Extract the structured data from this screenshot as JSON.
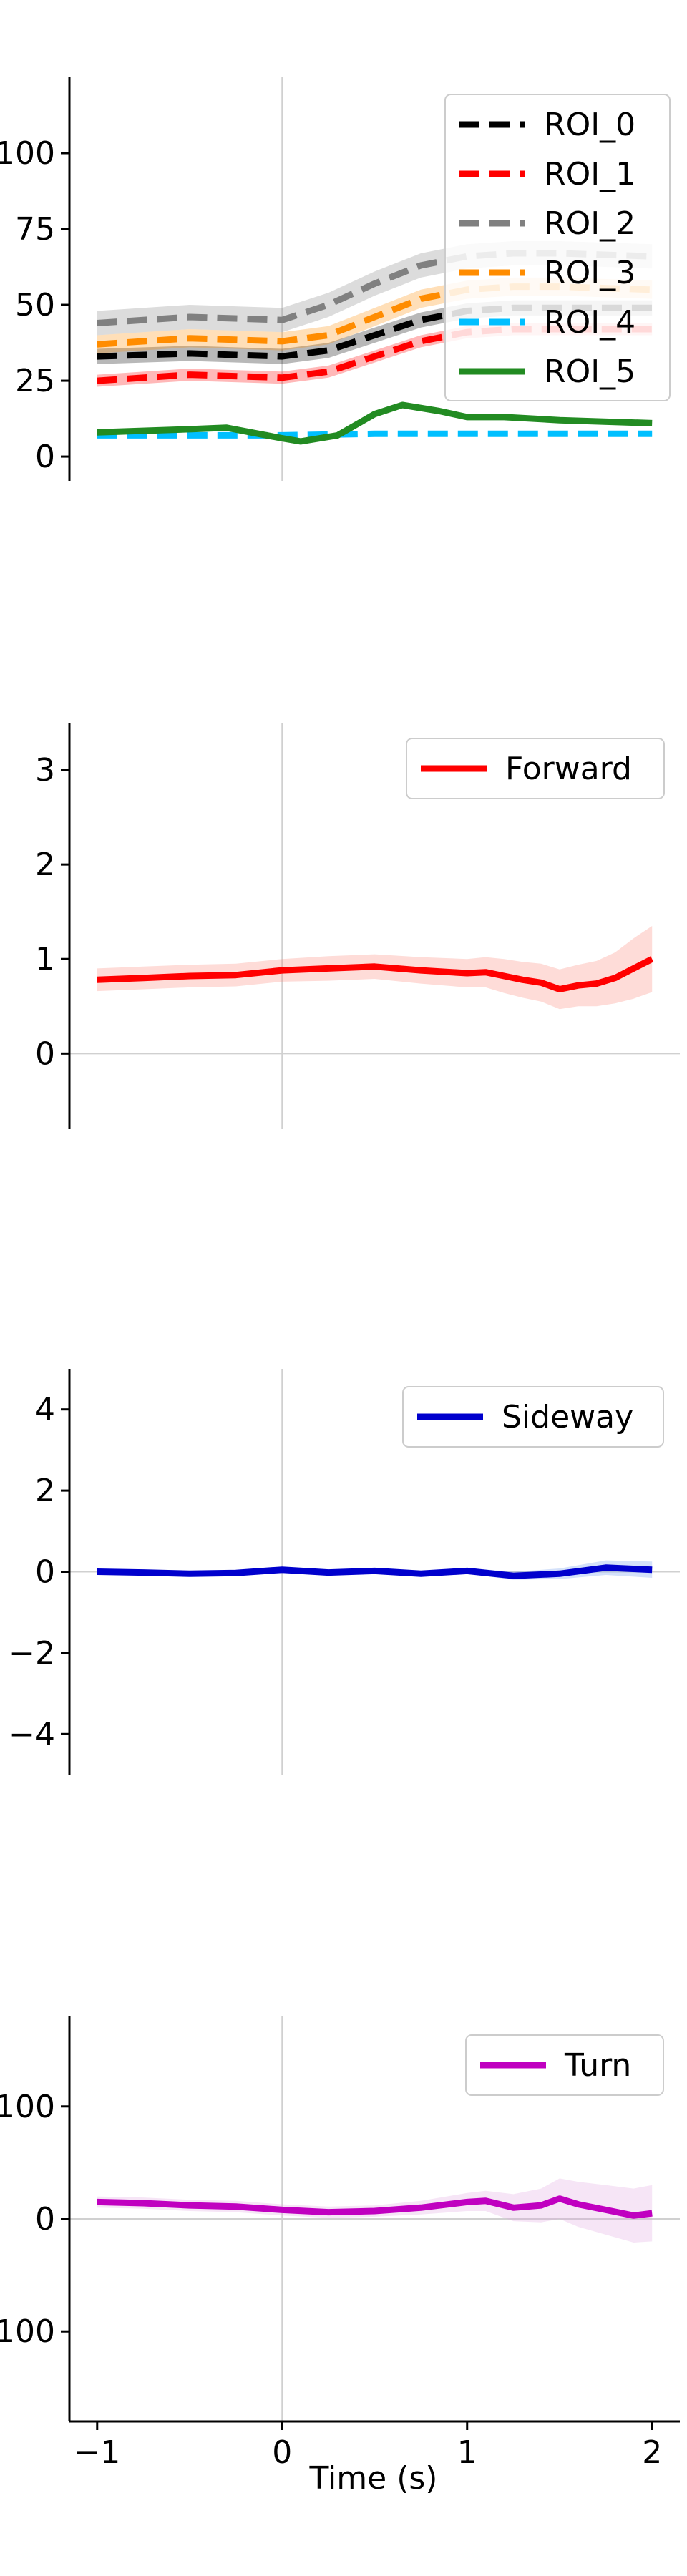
{
  "chart_data": [
    {
      "type": "line",
      "title": "",
      "xlabel": "",
      "ylabel": "",
      "xlim": [
        -1.15,
        2.15
      ],
      "ylim": [
        -8,
        125
      ],
      "yticks": [
        0,
        25,
        50,
        75,
        100
      ],
      "ytick_labels": [
        "0",
        "25",
        "50",
        "75",
        "100"
      ],
      "grid": false,
      "reference_lines": {
        "x": 0,
        "y": null
      },
      "legend": {
        "placement": "top-right"
      },
      "series": [
        {
          "name": "ROI_0",
          "color": "#000000",
          "dash": "dashed",
          "band": 2.5,
          "x": [
            -1,
            -0.5,
            0,
            0.25,
            0.5,
            0.75,
            1,
            1.25,
            1.5,
            2
          ],
          "y": [
            33,
            34,
            33,
            35,
            40,
            45,
            48,
            49,
            49,
            49
          ]
        },
        {
          "name": "ROI_1",
          "color": "#ff0000",
          "dash": "dashed",
          "band": 2,
          "x": [
            -1,
            -0.5,
            0,
            0.25,
            0.5,
            0.75,
            1,
            1.25,
            1.5,
            2
          ],
          "y": [
            25,
            27,
            26,
            28,
            33,
            38,
            41,
            42,
            42,
            42
          ]
        },
        {
          "name": "ROI_2",
          "color": "#808080",
          "dash": "dashed",
          "band": 4,
          "x": [
            -1,
            -0.5,
            0,
            0.25,
            0.5,
            0.75,
            1,
            1.25,
            1.5,
            2
          ],
          "y": [
            44,
            46,
            45,
            50,
            57,
            63,
            66,
            67,
            67,
            66
          ]
        },
        {
          "name": "ROI_3",
          "color": "#ff8c00",
          "dash": "dashed",
          "band": 3,
          "x": [
            -1,
            -0.5,
            0,
            0.25,
            0.5,
            0.75,
            1,
            1.25,
            1.5,
            2
          ],
          "y": [
            37,
            39,
            38,
            40,
            46,
            52,
            55,
            56,
            56,
            55
          ]
        },
        {
          "name": "ROI_4",
          "color": "#00bfff",
          "dash": "dashed",
          "band": 0,
          "x": [
            -1,
            -0.5,
            0,
            0.5,
            1,
            1.5,
            2
          ],
          "y": [
            7,
            7,
            7,
            7.5,
            7.5,
            7.5,
            7.5
          ]
        },
        {
          "name": "ROI_5",
          "color": "#228b22",
          "dash": "solid",
          "band": 0,
          "x": [
            -1,
            -0.5,
            -0.3,
            0,
            0.1,
            0.3,
            0.5,
            0.65,
            0.85,
            1,
            1.2,
            1.5,
            2
          ],
          "y": [
            8,
            9,
            9.5,
            6,
            5,
            7,
            14,
            17,
            15,
            13,
            13,
            12,
            11
          ]
        }
      ]
    },
    {
      "type": "line",
      "title": "",
      "xlabel": "",
      "ylabel": "",
      "xlim": [
        -1.15,
        2.15
      ],
      "ylim": [
        -0.8,
        3.5
      ],
      "yticks": [
        0,
        1,
        2,
        3
      ],
      "ytick_labels": [
        "0",
        "1",
        "2",
        "3"
      ],
      "grid": false,
      "reference_lines": {
        "x": 0,
        "y": 0
      },
      "legend": {
        "placement": "top-right"
      },
      "series": [
        {
          "name": "Forward",
          "color": "#ff0000",
          "dash": "solid",
          "band_color": "#fa8072",
          "x": [
            -1,
            -0.75,
            -0.5,
            -0.25,
            0,
            0.25,
            0.5,
            0.75,
            1,
            1.1,
            1.2,
            1.3,
            1.4,
            1.5,
            1.6,
            1.7,
            1.8,
            1.9,
            2
          ],
          "y": [
            0.78,
            0.8,
            0.82,
            0.83,
            0.88,
            0.9,
            0.92,
            0.88,
            0.85,
            0.86,
            0.82,
            0.78,
            0.75,
            0.68,
            0.72,
            0.74,
            0.8,
            0.9,
            1.0
          ],
          "band": [
            0.12,
            0.12,
            0.12,
            0.12,
            0.12,
            0.13,
            0.13,
            0.14,
            0.15,
            0.16,
            0.18,
            0.19,
            0.2,
            0.21,
            0.22,
            0.24,
            0.27,
            0.32,
            0.35
          ]
        }
      ]
    },
    {
      "type": "line",
      "title": "",
      "xlabel": "",
      "ylabel": "",
      "xlim": [
        -1.15,
        2.15
      ],
      "ylim": [
        -5,
        5
      ],
      "yticks": [
        -4,
        -2,
        0,
        2,
        4
      ],
      "ytick_labels": [
        "−4",
        "−2",
        "0",
        "2",
        "4"
      ],
      "grid": false,
      "reference_lines": {
        "x": 0,
        "y": 0
      },
      "legend": {
        "placement": "top-right"
      },
      "series": [
        {
          "name": "Sideway",
          "color": "#0000cd",
          "dash": "solid",
          "band_color": "#6495ed",
          "x": [
            -1,
            -0.75,
            -0.5,
            -0.25,
            0,
            0.25,
            0.5,
            0.75,
            1,
            1.25,
            1.5,
            1.75,
            2
          ],
          "y": [
            0,
            -0.02,
            -0.05,
            -0.03,
            0.05,
            -0.02,
            0.02,
            -0.05,
            0.02,
            -0.1,
            -0.05,
            0.1,
            0.05
          ],
          "band": [
            0.05,
            0.05,
            0.05,
            0.05,
            0.05,
            0.05,
            0.06,
            0.06,
            0.07,
            0.1,
            0.13,
            0.18,
            0.2
          ]
        }
      ]
    },
    {
      "type": "line",
      "title": "",
      "xlabel": "Time (s)",
      "ylabel": "",
      "xlim": [
        -1.15,
        2.15
      ],
      "xticks": [
        -1,
        0,
        1,
        2
      ],
      "xtick_labels": [
        "−1",
        "0",
        "1",
        "2"
      ],
      "ylim": [
        -180,
        180
      ],
      "yticks": [
        -100,
        0,
        100
      ],
      "ytick_labels": [
        "100",
        "0",
        "100"
      ],
      "grid": false,
      "reference_lines": {
        "x": 0,
        "y": 0
      },
      "legend": {
        "placement": "top-right"
      },
      "series": [
        {
          "name": "Turn",
          "color": "#c000c0",
          "dash": "solid",
          "band_color": "#dda0dd",
          "x": [
            -1,
            -0.75,
            -0.5,
            -0.25,
            0,
            0.25,
            0.5,
            0.75,
            1,
            1.1,
            1.25,
            1.4,
            1.5,
            1.6,
            1.75,
            1.9,
            2
          ],
          "y": [
            15,
            14,
            12,
            11,
            8,
            6,
            7,
            10,
            15,
            16,
            10,
            12,
            18,
            13,
            8,
            3,
            5
          ],
          "band": [
            5,
            5,
            5,
            5,
            5,
            5,
            5,
            6,
            8,
            9,
            12,
            15,
            18,
            20,
            22,
            24,
            25
          ]
        }
      ]
    }
  ]
}
